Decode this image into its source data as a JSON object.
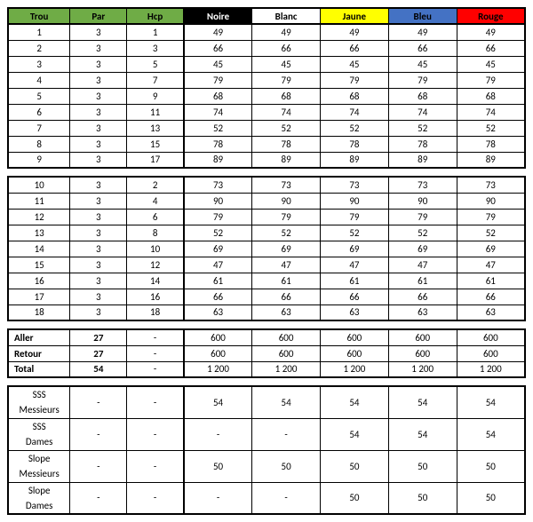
{
  "headers": {
    "trou": {
      "label": "Trou",
      "bg": "#6fac46",
      "fg": "#000000"
    },
    "par": {
      "label": "Par",
      "bg": "#6fac46",
      "fg": "#000000"
    },
    "hcp": {
      "label": "Hcp",
      "bg": "#6fac46",
      "fg": "#000000"
    },
    "noire": {
      "label": "Noire",
      "bg": "#000000",
      "fg": "#ffffff"
    },
    "blanc": {
      "label": "Blanc",
      "bg": "#ffffff",
      "fg": "#000000"
    },
    "jaune": {
      "label": "Jaune",
      "bg": "#ffff00",
      "fg": "#000000"
    },
    "bleu": {
      "label": "Bleu",
      "bg": "#4472c4",
      "fg": "#000000"
    },
    "rouge": {
      "label": "Rouge",
      "bg": "#ff0000",
      "fg": "#000000"
    }
  },
  "front9": [
    {
      "h": "1",
      "par": "3",
      "hcp": "1",
      "d": [
        "49",
        "49",
        "49",
        "49",
        "49"
      ]
    },
    {
      "h": "2",
      "par": "3",
      "hcp": "3",
      "d": [
        "66",
        "66",
        "66",
        "66",
        "66"
      ]
    },
    {
      "h": "3",
      "par": "3",
      "hcp": "5",
      "d": [
        "45",
        "45",
        "45",
        "45",
        "45"
      ]
    },
    {
      "h": "4",
      "par": "3",
      "hcp": "7",
      "d": [
        "79",
        "79",
        "79",
        "79",
        "79"
      ]
    },
    {
      "h": "5",
      "par": "3",
      "hcp": "9",
      "d": [
        "68",
        "68",
        "68",
        "68",
        "68"
      ]
    },
    {
      "h": "6",
      "par": "3",
      "hcp": "11",
      "d": [
        "74",
        "74",
        "74",
        "74",
        "74"
      ]
    },
    {
      "h": "7",
      "par": "3",
      "hcp": "13",
      "d": [
        "52",
        "52",
        "52",
        "52",
        "52"
      ]
    },
    {
      "h": "8",
      "par": "3",
      "hcp": "15",
      "d": [
        "78",
        "78",
        "78",
        "78",
        "78"
      ]
    },
    {
      "h": "9",
      "par": "3",
      "hcp": "17",
      "d": [
        "89",
        "89",
        "89",
        "89",
        "89"
      ]
    }
  ],
  "back9": [
    {
      "h": "10",
      "par": "3",
      "hcp": "2",
      "d": [
        "73",
        "73",
        "73",
        "73",
        "73"
      ]
    },
    {
      "h": "11",
      "par": "3",
      "hcp": "4",
      "d": [
        "90",
        "90",
        "90",
        "90",
        "90"
      ]
    },
    {
      "h": "12",
      "par": "3",
      "hcp": "6",
      "d": [
        "79",
        "79",
        "79",
        "79",
        "79"
      ]
    },
    {
      "h": "13",
      "par": "3",
      "hcp": "8",
      "d": [
        "52",
        "52",
        "52",
        "52",
        "52"
      ]
    },
    {
      "h": "14",
      "par": "3",
      "hcp": "10",
      "d": [
        "69",
        "69",
        "69",
        "69",
        "69"
      ]
    },
    {
      "h": "15",
      "par": "3",
      "hcp": "12",
      "d": [
        "47",
        "47",
        "47",
        "47",
        "47"
      ]
    },
    {
      "h": "16",
      "par": "3",
      "hcp": "14",
      "d": [
        "61",
        "61",
        "61",
        "61",
        "61"
      ]
    },
    {
      "h": "17",
      "par": "3",
      "hcp": "16",
      "d": [
        "66",
        "66",
        "66",
        "66",
        "66"
      ]
    },
    {
      "h": "18",
      "par": "3",
      "hcp": "18",
      "d": [
        "63",
        "63",
        "63",
        "63",
        "63"
      ]
    }
  ],
  "totals": [
    {
      "label": "Aller",
      "par": "27",
      "hcp": "-",
      "d": [
        "600",
        "600",
        "600",
        "600",
        "600"
      ]
    },
    {
      "label": "Retour",
      "par": "27",
      "hcp": "-",
      "d": [
        "600",
        "600",
        "600",
        "600",
        "600"
      ]
    },
    {
      "label": "Total",
      "par": "54",
      "hcp": "-",
      "d": [
        "1 200",
        "1 200",
        "1 200",
        "1 200",
        "1 200"
      ]
    }
  ],
  "ratings": {
    "sssMessieurs": {
      "l1": "SSS",
      "l2": "Messieurs",
      "par": "-",
      "hcp": "-",
      "d": [
        "54",
        "54",
        "54",
        "54",
        "54"
      ]
    },
    "sssDames": {
      "l1": "SSS",
      "l2": "Dames",
      "par": "-",
      "hcp": "-",
      "d": [
        "-",
        "-",
        "54",
        "54",
        "54"
      ]
    },
    "slopeMessieurs": {
      "l1": "Slope",
      "l2": "Messieurs",
      "par": "-",
      "hcp": "-",
      "d": [
        "50",
        "50",
        "50",
        "50",
        "50"
      ]
    },
    "slopeDames": {
      "l1": "Slope",
      "l2": "Dames",
      "par": "-",
      "hcp": "-",
      "d": [
        "-",
        "-",
        "50",
        "50",
        "50"
      ]
    }
  }
}
